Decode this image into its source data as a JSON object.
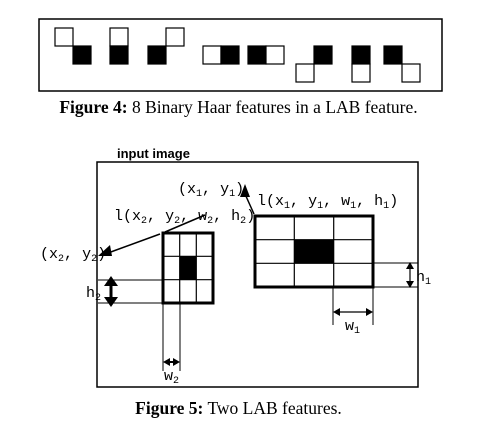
{
  "figure4": {
    "caption_label": "Figure 4:",
    "caption_text": " 8 Binary Haar features in a LAB feature."
  },
  "figure5": {
    "caption_label": "Figure 5:",
    "caption_text": " Two LAB features.",
    "input_label": "input image",
    "feature1": {
      "prefix": "l(",
      "x": "x",
      "x_sub": "1",
      "y": "y",
      "y_sub": "1",
      "w": "w",
      "w_sub": "1",
      "h": "h",
      "h_sub": "1"
    },
    "feature2": {
      "prefix": "l(",
      "x": "x",
      "x_sub": "2",
      "y": "y",
      "y_sub": "2",
      "w": "w",
      "w_sub": "2",
      "h": "h",
      "h_sub": "2"
    },
    "comma": ", ",
    "open": "(",
    "close": ")"
  }
}
